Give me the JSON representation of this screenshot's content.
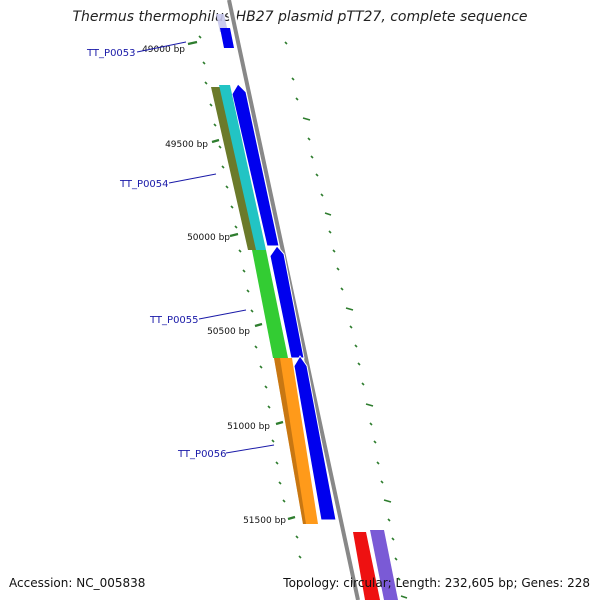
{
  "title": "Thermus thermophilus HB27 plasmid pTT27, complete sequence",
  "ruler": {
    "ticks": [
      {
        "label": "49000 bp"
      },
      {
        "label": "49500 bp"
      },
      {
        "label": "50000 bp"
      },
      {
        "label": "50500 bp"
      },
      {
        "label": "51000 bp"
      },
      {
        "label": "51500 bp"
      }
    ]
  },
  "genes": [
    {
      "label": "TT_P0053"
    },
    {
      "label": "TT_P0054"
    },
    {
      "label": "TT_P0055"
    },
    {
      "label": "TT_P0056"
    }
  ],
  "colors": {
    "backbone": "#888888",
    "orf_strand": "#0000ee",
    "tick_green": "#2e7d2e",
    "gene_label": "#1a1aa8",
    "gene_olive": "#6b7a2a",
    "gene_cyan": "#22c4c4",
    "gene_green": "#33cc33",
    "gene_orange": "#ff9a1a",
    "gene_red": "#ee1111",
    "gene_purple": "#7a5ad6"
  },
  "footer": {
    "accession": "Accession: NC_005838",
    "summary": "Topology: circular; Length: 232,605 bp; Genes: 228"
  }
}
